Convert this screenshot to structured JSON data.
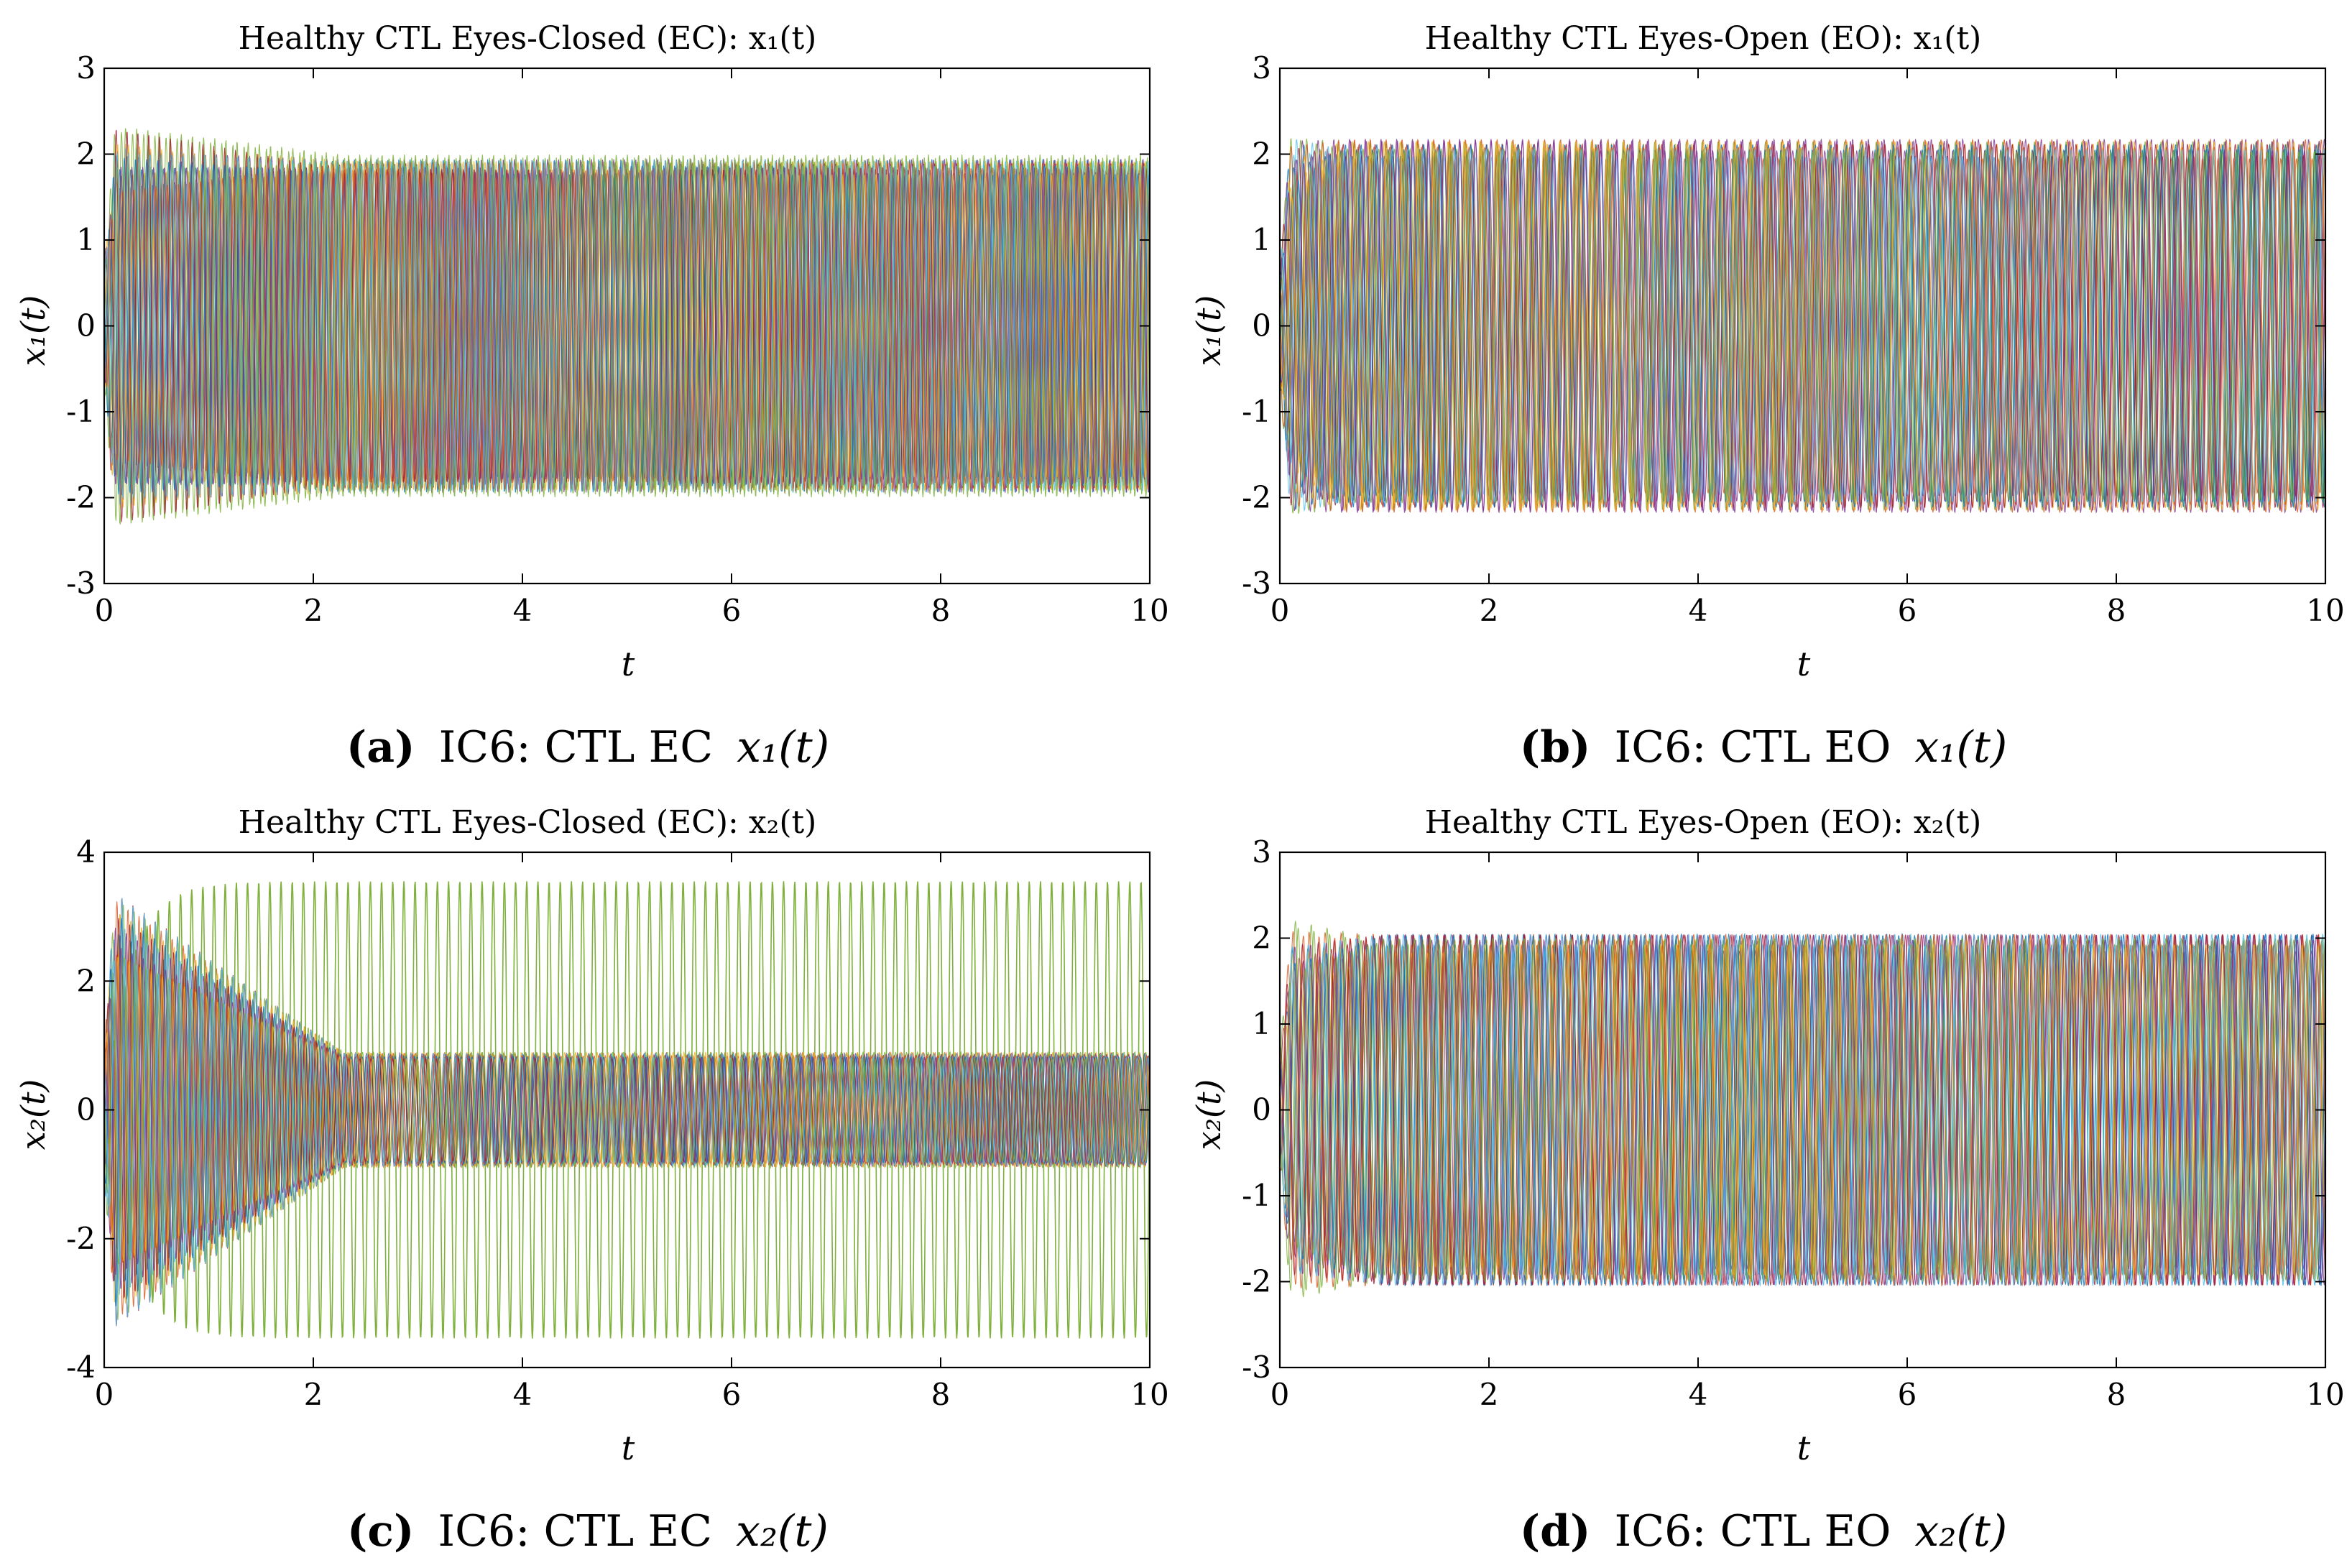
{
  "chart_data": [
    {
      "id": "a",
      "type": "line",
      "title": "Healthy CTL Eyes-Closed (EC): x₁(t)",
      "xlabel": "t",
      "ylabel": "x₁(t)",
      "xlim": [
        0,
        10
      ],
      "ylim": [
        -3,
        3
      ],
      "xticks": [
        0,
        2,
        4,
        6,
        8,
        10
      ],
      "xtick_labels": [
        "0",
        "2",
        "4",
        "6",
        "8",
        "10"
      ],
      "yticks": [
        -3,
        -2,
        -1,
        0,
        1,
        2,
        3
      ],
      "ytick_labels": [
        "-3",
        "-2",
        "-1",
        "0",
        "1",
        "2",
        "3"
      ],
      "caption": {
        "letter": "(a)",
        "text": "IC6: CTL EC",
        "math": "x₁(t)"
      },
      "series_summary": {
        "n_traces": 20,
        "oscillation_freq_hz": 9.5,
        "steady_amplitude": 2.0,
        "transient_peak": 2.35,
        "transient_end_t": 2.3,
        "outlier_amplitude": null
      },
      "series": [
        {
          "name": "trace 1",
          "color": "#0072BD"
        },
        {
          "name": "trace 2",
          "color": "#D95319"
        },
        {
          "name": "trace 3",
          "color": "#EDB120"
        },
        {
          "name": "trace 4",
          "color": "#7E2F8E"
        },
        {
          "name": "trace 5",
          "color": "#77AC30"
        },
        {
          "name": "trace 6",
          "color": "#4DBEEE"
        },
        {
          "name": "trace 7",
          "color": "#A2142F"
        }
      ]
    },
    {
      "id": "b",
      "type": "line",
      "title": "Healthy CTL Eyes-Open (EO): x₁(t)",
      "xlabel": "t",
      "ylabel": "x₁(t)",
      "xlim": [
        0,
        10
      ],
      "ylim": [
        -3,
        3
      ],
      "xticks": [
        0,
        2,
        4,
        6,
        8,
        10
      ],
      "xtick_labels": [
        "0",
        "2",
        "4",
        "6",
        "8",
        "10"
      ],
      "yticks": [
        -3,
        -2,
        -1,
        0,
        1,
        2,
        3
      ],
      "ytick_labels": [
        "-3",
        "-2",
        "-1",
        "0",
        "1",
        "2",
        "3"
      ],
      "caption": {
        "letter": "(b)",
        "text": "IC6: CTL EO",
        "math": "x₁(t)"
      },
      "series_summary": {
        "n_traces": 20,
        "oscillation_freq_hz": 6.6,
        "steady_amplitude": 2.2,
        "transient_peak": 2.25,
        "transient_end_t": 0.6,
        "outlier_amplitude": null
      },
      "series": [
        {
          "name": "trace 1",
          "color": "#0072BD"
        },
        {
          "name": "trace 2",
          "color": "#D95319"
        },
        {
          "name": "trace 3",
          "color": "#EDB120"
        },
        {
          "name": "trace 4",
          "color": "#7E2F8E"
        },
        {
          "name": "trace 5",
          "color": "#77AC30"
        },
        {
          "name": "trace 6",
          "color": "#4DBEEE"
        },
        {
          "name": "trace 7",
          "color": "#A2142F"
        }
      ]
    },
    {
      "id": "c",
      "type": "line",
      "title": "Healthy CTL Eyes-Closed (EC): x₂(t)",
      "xlabel": "t",
      "ylabel": "x₂(t)",
      "xlim": [
        0,
        10
      ],
      "ylim": [
        -4,
        4
      ],
      "xticks": [
        0,
        2,
        4,
        6,
        8,
        10
      ],
      "xtick_labels": [
        "0",
        "2",
        "4",
        "6",
        "8",
        "10"
      ],
      "yticks": [
        -4,
        -2,
        0,
        2,
        4
      ],
      "ytick_labels": [
        "-4",
        "-2",
        "0",
        "2",
        "4"
      ],
      "caption": {
        "letter": "(c)",
        "text": "IC6: CTL EC",
        "math": "x₂(t)"
      },
      "series_summary": {
        "n_traces": 20,
        "oscillation_freq_hz": 9.5,
        "steady_amplitude": 0.9,
        "transient_peak": 3.5,
        "transient_end_t": 2.3,
        "outlier_amplitude": 3.55
      },
      "series": [
        {
          "name": "trace 1",
          "color": "#0072BD"
        },
        {
          "name": "trace 2",
          "color": "#D95319"
        },
        {
          "name": "trace 3",
          "color": "#EDB120"
        },
        {
          "name": "trace 4",
          "color": "#7E2F8E"
        },
        {
          "name": "trace 5",
          "color": "#77AC30"
        },
        {
          "name": "trace 6",
          "color": "#4DBEEE"
        },
        {
          "name": "trace 7",
          "color": "#A2142F"
        }
      ]
    },
    {
      "id": "d",
      "type": "line",
      "title": "Healthy CTL Eyes-Open (EO): x₂(t)",
      "xlabel": "t",
      "ylabel": "x₂(t)",
      "xlim": [
        0,
        10
      ],
      "ylim": [
        -3,
        3
      ],
      "xticks": [
        0,
        2,
        4,
        6,
        8,
        10
      ],
      "xtick_labels": [
        "0",
        "2",
        "4",
        "6",
        "8",
        "10"
      ],
      "yticks": [
        -3,
        -2,
        -1,
        0,
        1,
        2,
        3
      ],
      "ytick_labels": [
        "-3",
        "-2",
        "-1",
        "0",
        "1",
        "2",
        "3"
      ],
      "caption": {
        "letter": "(d)",
        "text": "IC6: CTL EO",
        "math": "x₂(t)"
      },
      "series_summary": {
        "n_traces": 20,
        "oscillation_freq_hz": 6.6,
        "steady_amplitude": 2.05,
        "transient_peak": 2.25,
        "transient_end_t": 1.0,
        "outlier_amplitude": null
      },
      "series": [
        {
          "name": "trace 1",
          "color": "#0072BD"
        },
        {
          "name": "trace 2",
          "color": "#D95319"
        },
        {
          "name": "trace 3",
          "color": "#EDB120"
        },
        {
          "name": "trace 4",
          "color": "#7E2F8E"
        },
        {
          "name": "trace 5",
          "color": "#77AC30"
        },
        {
          "name": "trace 6",
          "color": "#4DBEEE"
        },
        {
          "name": "trace 7",
          "color": "#A2142F"
        }
      ]
    }
  ]
}
